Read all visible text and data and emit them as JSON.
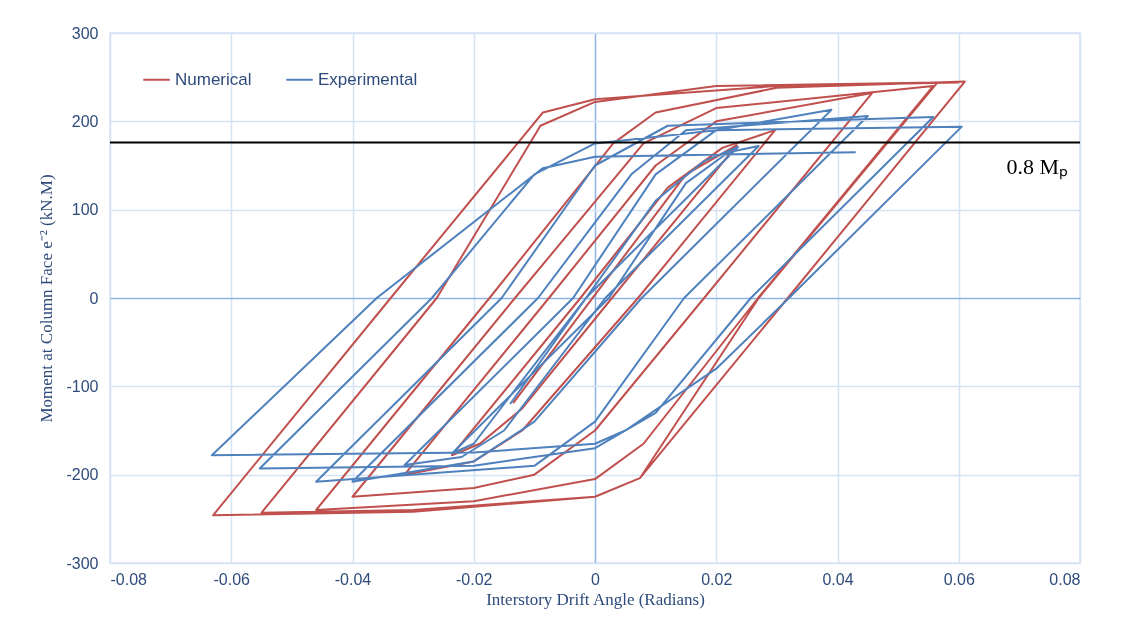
{
  "chart_data": {
    "type": "line",
    "xlabel": "Interstory Drift Angle (Radians)",
    "ylabel": "Moment at Column Face e⁻² (kN.M)",
    "xlim": [
      -0.08,
      0.08
    ],
    "xticks": [
      -0.08,
      -0.06,
      -0.04,
      -0.02,
      0,
      0.02,
      0.04,
      0.06,
      0.08
    ],
    "ylim": [
      -300,
      300
    ],
    "yticks": [
      -300,
      -200,
      -100,
      0,
      100,
      200,
      300
    ],
    "grid": true,
    "legend": "top left",
    "marker": "none",
    "line_style": "solid",
    "ref_lines": [
      {
        "axis": "y",
        "value": 176,
        "label": "0.8 Mₚ",
        "color": "#000000"
      }
    ],
    "series": [
      {
        "name": "Numerical",
        "color": "#c0504d",
        "x": [
          -0.0135,
          0.015,
          0.0234,
          0.0028,
          -0.012,
          -0.019,
          -0.0236,
          -0.0024,
          0.012,
          0.021,
          0.0297,
          0.0071,
          -0.012,
          -0.02,
          -0.0314,
          -0.0076,
          0.01,
          0.02,
          0.0457,
          0.018,
          0.0,
          -0.01,
          -0.02,
          -0.04,
          -0.0132,
          0.008,
          0.02,
          0.0558,
          0.0269,
          0.008,
          0.0,
          -0.02,
          -0.046,
          -0.0174,
          0.003,
          0.01,
          0.03,
          0.061,
          0.0318,
          0.0074,
          0.0,
          -0.03,
          -0.055,
          -0.0261,
          -0.009,
          0.0,
          0.02,
          0.0565,
          0.027,
          0.0074,
          0.0,
          -0.03,
          -0.063,
          -0.0337,
          -0.0086,
          0.0,
          0.03,
          0.06
        ],
        "values": [
          -119,
          140,
          173,
          0,
          -125,
          -165,
          -178,
          0,
          125,
          170,
          190,
          0,
          -150,
          -185,
          -200,
          0,
          150,
          200,
          232,
          0,
          -150,
          -200,
          -215,
          -225,
          0,
          175,
          215,
          240,
          0,
          -165,
          -205,
          -230,
          -240,
          0,
          175,
          210,
          238,
          245,
          0,
          -204,
          -225,
          -240,
          -243,
          0,
          195,
          222,
          240,
          244,
          0,
          -204,
          -225,
          -242,
          -246,
          0,
          210,
          225,
          240,
          244
        ]
      },
      {
        "name": "Experimental",
        "color": "#4f81bd",
        "x": [
          -0.014,
          0.01,
          0.018,
          0.0236,
          -0.0015,
          -0.015,
          -0.02,
          -0.0236,
          0.0023,
          0.015,
          0.022,
          0.027,
          0.0017,
          -0.015,
          -0.022,
          -0.0314,
          -0.0036,
          0.01,
          0.02,
          0.039,
          0.0077,
          -0.01,
          -0.02,
          -0.04,
          -0.0094,
          0.006,
          0.015,
          0.045,
          0.0147,
          0.0,
          -0.01,
          -0.046,
          -0.0154,
          0.0,
          0.012,
          0.0558,
          0.0257,
          0.01,
          0.0,
          -0.02,
          -0.0553,
          -0.0269,
          -0.01,
          0.0,
          0.02,
          0.0605,
          0.032,
          0.02,
          0.005,
          0.0,
          -0.02,
          -0.0632,
          -0.036,
          -0.0086,
          0.0,
          0.043
        ],
        "values": [
          -120,
          110,
          155,
          171,
          0,
          -120,
          -165,
          -176,
          0,
          130,
          165,
          172,
          0,
          -150,
          -180,
          -189,
          0,
          140,
          190,
          213,
          0,
          -140,
          -185,
          -208,
          0,
          140,
          190,
          206,
          0,
          -140,
          -190,
          -208,
          0,
          150,
          195,
          205,
          0,
          -130,
          -170,
          -190,
          -193,
          0,
          140,
          175,
          190,
          194,
          0,
          -80,
          -150,
          -165,
          -175,
          -178,
          0,
          147,
          160,
          165
        ]
      }
    ]
  }
}
